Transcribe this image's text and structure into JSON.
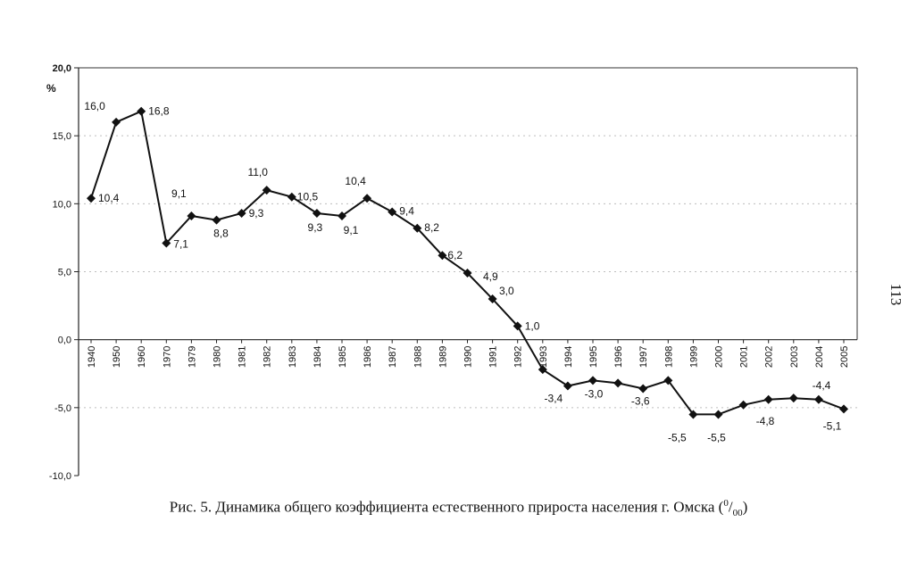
{
  "chart_data": {
    "type": "line",
    "ylabel": "%",
    "ylim": [
      -10,
      20
    ],
    "yticks": [
      "20,0",
      "15,0",
      "10,0",
      "5,0",
      "0,0",
      "-5,0",
      "-10,0"
    ],
    "grid": true,
    "categories": [
      "1940",
      "1950",
      "1960",
      "1970",
      "1979",
      "1980",
      "1981",
      "1982",
      "1983",
      "1984",
      "1985",
      "1986",
      "1987",
      "1988",
      "1989",
      "1990",
      "1991",
      "1992",
      "1993",
      "1994",
      "1995",
      "1996",
      "1997",
      "1998",
      "1999",
      "2000",
      "2001",
      "2002",
      "2003",
      "2004",
      "2005"
    ],
    "values": [
      10.4,
      16.0,
      16.8,
      7.1,
      9.1,
      8.8,
      9.3,
      11.0,
      10.5,
      9.3,
      9.1,
      10.4,
      9.4,
      8.2,
      6.2,
      4.9,
      3.0,
      1.0,
      -2.2,
      -3.4,
      -3.0,
      -3.2,
      -3.6,
      -3.0,
      -5.5,
      -5.5,
      -4.8,
      -4.4,
      -4.3,
      -4.4,
      -5.1
    ],
    "data_labels": [
      "10,4",
      "16,0",
      "16,8",
      "7,1",
      "9,1",
      "8,8",
      "9,3",
      "11,0",
      "10,5",
      "9,3",
      "9,1",
      "10,4",
      "9,4",
      "8,2",
      "6,2",
      "4,9",
      "3,0",
      "1,0",
      "",
      "-3,4",
      "-3,0",
      "",
      "-3,6",
      "",
      "-5,5",
      "-5,5",
      "-4,8",
      "",
      "",
      "-4,4",
      "-5,1"
    ]
  },
  "caption": {
    "prefix": "Рис. 5. Динамика общего коэффициента естественного прироста населения г. Омска (",
    "sup": "0",
    "slash": "/",
    "sub": "00",
    "suffix": ")"
  },
  "page_number": "113"
}
